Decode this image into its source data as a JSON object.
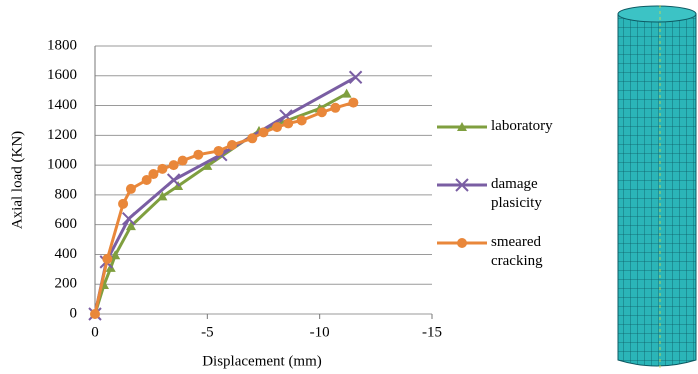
{
  "chart_data": {
    "type": "line",
    "x_label": "Displacement (mm)",
    "y_label": "Axial load (KN)",
    "xlim": [
      0,
      -15
    ],
    "xticks": [
      0,
      -5,
      -10,
      -15
    ],
    "ylim": [
      0,
      1800
    ],
    "yticks": [
      0,
      200,
      400,
      600,
      800,
      1000,
      1200,
      1400,
      1600,
      1800
    ],
    "grid": true,
    "legend": "right",
    "series": [
      {
        "name": "laboratory",
        "color": "#7f9f3f",
        "marker": "triangle",
        "x": [
          0,
          -0.4,
          -0.7,
          -0.9,
          -1.6,
          -3.0,
          -3.7,
          -5.0,
          -7.3,
          -10.0,
          -11.2
        ],
        "values": [
          0,
          195,
          310,
          395,
          590,
          790,
          860,
          995,
          1230,
          1380,
          1480
        ]
      },
      {
        "name": "damage plasicity",
        "color": "#7a5ea3",
        "marker": "cross",
        "x": [
          0,
          -0.5,
          -1.5,
          -3.5,
          -5.6,
          -8.5,
          -11.6
        ],
        "values": [
          0,
          350,
          640,
          900,
          1070,
          1330,
          1590
        ]
      },
      {
        "name": "smeared cracking",
        "color": "#e9873a",
        "marker": "circle",
        "x": [
          0,
          -0.55,
          -1.25,
          -1.6,
          -2.3,
          -2.6,
          -3.0,
          -3.5,
          -3.9,
          -4.6,
          -5.5,
          -6.1,
          -7.0,
          -7.5,
          -8.1,
          -8.6,
          -9.2,
          -10.1,
          -10.7,
          -11.5
        ],
        "values": [
          0,
          370,
          740,
          840,
          900,
          940,
          975,
          1000,
          1030,
          1070,
          1095,
          1135,
          1180,
          1220,
          1255,
          1280,
          1300,
          1355,
          1385,
          1420
        ]
      }
    ]
  }
}
